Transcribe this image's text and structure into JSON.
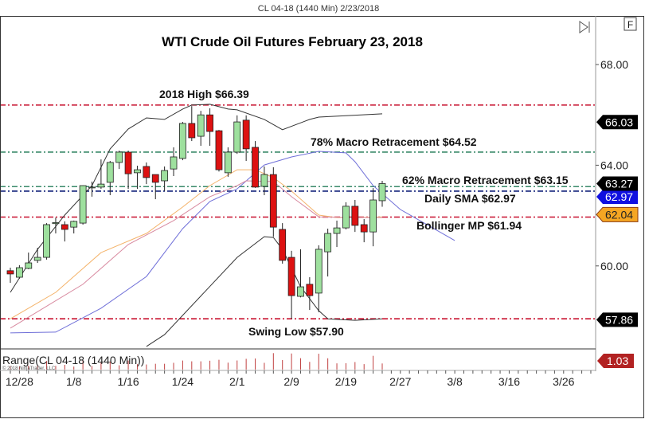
{
  "window": {
    "header": "CL 04-18 (1440 Min)  2/23/2018",
    "f_button": "F",
    "scroll_end_icon": "scroll-to-end-icon"
  },
  "chart_data": {
    "type": "candlestick",
    "title": "WTI Crude Oil Futures February 23, 2018",
    "ylim": [
      56.9,
      69.8
    ],
    "y_ticks": [
      "68.00",
      "64.00",
      "60.00"
    ],
    "y_tick_values": [
      68,
      64,
      60
    ],
    "x_ticks": [
      "12/28",
      "1/8",
      "1/16",
      "1/24",
      "2/1",
      "2/9",
      "2/19",
      "2/27",
      "3/8",
      "3/16",
      "3/26"
    ],
    "grid": false,
    "colors": {
      "up": "#9ee09e",
      "down": "#dd1111",
      "upper_band": "#333333",
      "lower_band": "#333333",
      "sma_blue": "#6f6fd8",
      "orange": "#f4b36a",
      "pink": "#d88aa0"
    },
    "candles": [
      {
        "date": "12/27",
        "o": 59.81,
        "h": 59.93,
        "l": 59.33,
        "c": 59.68
      },
      {
        "date": "12/28",
        "o": 59.55,
        "h": 60.03,
        "l": 59.49,
        "c": 59.93
      },
      {
        "date": "12/29",
        "o": 59.9,
        "h": 60.53,
        "l": 59.87,
        "c": 60.12
      },
      {
        "date": "1/2",
        "o": 60.22,
        "h": 60.72,
        "l": 60.12,
        "c": 60.34
      },
      {
        "date": "1/3",
        "o": 60.34,
        "h": 61.7,
        "l": 60.25,
        "c": 61.64
      },
      {
        "date": "1/4",
        "o": 61.68,
        "h": 61.92,
        "l": 61.29,
        "c": 61.72
      },
      {
        "date": "1/5",
        "o": 61.64,
        "h": 61.77,
        "l": 60.97,
        "c": 61.45
      },
      {
        "date": "1/8",
        "o": 61.54,
        "h": 61.8,
        "l": 61.29,
        "c": 61.77
      },
      {
        "date": "1/9",
        "o": 61.7,
        "h": 63.2,
        "l": 61.64,
        "c": 63.19
      },
      {
        "date": "1/10",
        "o": 63.11,
        "h": 63.35,
        "l": 62.75,
        "c": 63.13
      },
      {
        "date": "1/11",
        "o": 63.13,
        "h": 64.23,
        "l": 63.06,
        "c": 63.25
      },
      {
        "date": "1/12",
        "o": 63.32,
        "h": 64.17,
        "l": 62.81,
        "c": 64.11
      },
      {
        "date": "1/15",
        "o": 64.11,
        "h": 64.58,
        "l": 63.85,
        "c": 64.52
      },
      {
        "date": "1/16",
        "o": 64.52,
        "h": 64.58,
        "l": 63.06,
        "c": 63.66
      },
      {
        "date": "1/17",
        "o": 63.7,
        "h": 63.98,
        "l": 63.06,
        "c": 63.82
      },
      {
        "date": "1/18",
        "o": 63.95,
        "h": 64.11,
        "l": 63.25,
        "c": 63.51
      },
      {
        "date": "1/19",
        "o": 63.63,
        "h": 63.63,
        "l": 62.65,
        "c": 63.32
      },
      {
        "date": "1/22",
        "o": 63.38,
        "h": 63.95,
        "l": 62.97,
        "c": 63.79
      },
      {
        "date": "1/23",
        "o": 63.85,
        "h": 64.71,
        "l": 63.57,
        "c": 64.33
      },
      {
        "date": "1/24",
        "o": 64.27,
        "h": 65.72,
        "l": 64.2,
        "c": 65.66
      },
      {
        "date": "1/25",
        "o": 65.66,
        "h": 66.35,
        "l": 64.96,
        "c": 65.09
      },
      {
        "date": "1/26",
        "o": 65.15,
        "h": 66.16,
        "l": 64.77,
        "c": 66.0
      },
      {
        "date": "1/29",
        "o": 66.0,
        "h": 66.26,
        "l": 64.77,
        "c": 65.34
      },
      {
        "date": "1/30",
        "o": 65.37,
        "h": 65.4,
        "l": 63.75,
        "c": 63.82
      },
      {
        "date": "1/31",
        "o": 63.7,
        "h": 64.71,
        "l": 63.54,
        "c": 64.52
      },
      {
        "date": "2/1",
        "o": 64.52,
        "h": 65.98,
        "l": 64.45,
        "c": 65.72
      },
      {
        "date": "2/2",
        "o": 65.79,
        "h": 65.98,
        "l": 64.17,
        "c": 64.65
      },
      {
        "date": "2/5",
        "o": 64.71,
        "h": 64.96,
        "l": 63.1,
        "c": 63.13
      },
      {
        "date": "2/6",
        "o": 63.16,
        "h": 63.95,
        "l": 62.81,
        "c": 63.63
      },
      {
        "date": "2/7",
        "o": 63.63,
        "h": 63.92,
        "l": 61.16,
        "c": 61.54
      },
      {
        "date": "2/8",
        "o": 61.45,
        "h": 61.7,
        "l": 60.09,
        "c": 60.22
      },
      {
        "date": "2/9",
        "o": 60.34,
        "h": 60.6,
        "l": 57.9,
        "c": 58.82
      },
      {
        "date": "2/12",
        "o": 58.79,
        "h": 60.66,
        "l": 58.75,
        "c": 59.17
      },
      {
        "date": "2/13",
        "o": 59.27,
        "h": 59.55,
        "l": 58.25,
        "c": 58.82
      },
      {
        "date": "2/14",
        "o": 58.92,
        "h": 60.82,
        "l": 58.16,
        "c": 60.66
      },
      {
        "date": "2/15",
        "o": 60.56,
        "h": 61.48,
        "l": 59.58,
        "c": 61.29
      },
      {
        "date": "2/16",
        "o": 61.29,
        "h": 61.8,
        "l": 60.75,
        "c": 61.51
      },
      {
        "date": "2/19",
        "o": 61.51,
        "h": 62.53,
        "l": 61.45,
        "c": 62.37
      },
      {
        "date": "2/20",
        "o": 62.37,
        "h": 62.62,
        "l": 61.35,
        "c": 61.61
      },
      {
        "date": "2/21",
        "o": 61.64,
        "h": 61.86,
        "l": 60.94,
        "c": 61.35
      },
      {
        "date": "2/22",
        "o": 61.35,
        "h": 63.09,
        "l": 60.78,
        "c": 62.62
      },
      {
        "date": "2/23",
        "o": 62.59,
        "h": 63.38,
        "l": 62.35,
        "c": 63.27
      }
    ],
    "indicator_lines": [
      {
        "key": "upper_band",
        "points": [
          [
            "12/27",
            58.95
          ],
          [
            "1/2",
            60.66
          ],
          [
            "1/5",
            62.02
          ],
          [
            "1/10",
            63.19
          ],
          [
            "1/12",
            64.65
          ],
          [
            "1/16",
            65.44
          ],
          [
            "1/18",
            65.88
          ],
          [
            "1/22",
            65.82
          ],
          [
            "1/24",
            66.23
          ],
          [
            "1/25",
            66.39
          ],
          [
            "1/29",
            66.42
          ],
          [
            "1/31",
            66.23
          ],
          [
            "2/1",
            66.2
          ],
          [
            "2/6",
            65.82
          ],
          [
            "2/8",
            65.41
          ],
          [
            "2/13",
            65.82
          ],
          [
            "2/14",
            65.91
          ],
          [
            "2/23",
            66.04
          ]
        ]
      },
      {
        "key": "lower_band",
        "points": [
          [
            "1/18",
            56.8
          ],
          [
            "1/22",
            57.27
          ],
          [
            "2/1",
            60.34
          ],
          [
            "2/6",
            61.16
          ],
          [
            "2/7",
            61.13
          ],
          [
            "2/8",
            60.66
          ],
          [
            "2/12",
            59.17
          ],
          [
            "2/14",
            58.22
          ],
          [
            "2/15",
            57.9
          ],
          [
            "2/20",
            57.84
          ],
          [
            "2/23",
            57.9
          ]
        ]
      },
      {
        "key": "sma_blue",
        "points": [
          [
            "12/27",
            57.34
          ],
          [
            "1/4",
            57.37
          ],
          [
            "1/11",
            58.32
          ],
          [
            "1/18",
            59.58
          ],
          [
            "1/24",
            61.48
          ],
          [
            "1/29",
            62.56
          ],
          [
            "2/1",
            63.06
          ],
          [
            "2/6",
            64.01
          ],
          [
            "2/9",
            64.33
          ],
          [
            "2/14",
            64.55
          ],
          [
            "2/19",
            64.49
          ],
          [
            "2/20",
            64.14
          ],
          [
            "2/22",
            63.19
          ],
          [
            "2/27",
            62.24
          ],
          [
            "3/7",
            61.01
          ]
        ]
      },
      {
        "key": "orange",
        "points": [
          [
            "12/27",
            57.9
          ],
          [
            "1/4",
            58.95
          ],
          [
            "1/11",
            60.53
          ],
          [
            "1/18",
            61.29
          ],
          [
            "1/24",
            62.34
          ],
          [
            "1/29",
            63.19
          ],
          [
            "2/1",
            63.82
          ],
          [
            "2/2",
            63.82
          ],
          [
            "2/5",
            63.82
          ],
          [
            "2/7",
            63.51
          ],
          [
            "2/9",
            62.97
          ],
          [
            "2/14",
            62.02
          ],
          [
            "2/16",
            61.92
          ],
          [
            "2/20",
            61.92
          ],
          [
            "2/23",
            61.95
          ]
        ]
      },
      {
        "key": "pink",
        "points": [
          [
            "12/27",
            57.53
          ],
          [
            "1/9",
            59.27
          ],
          [
            "1/16",
            60.85
          ],
          [
            "1/23",
            61.8
          ],
          [
            "1/29",
            62.75
          ],
          [
            "2/1",
            63.19
          ],
          [
            "2/2",
            63.38
          ],
          [
            "2/7",
            63.35
          ],
          [
            "2/9",
            62.75
          ],
          [
            "2/14",
            61.95
          ],
          [
            "2/20",
            61.92
          ],
          [
            "2/23",
            61.92
          ]
        ]
      }
    ],
    "levels": [
      {
        "value": 66.39,
        "color": "#c8102e",
        "label": "2018 High $66.39"
      },
      {
        "value": 64.52,
        "color": "#3a8a6a",
        "label": "78% Macro Retracement $64.52"
      },
      {
        "value": 63.15,
        "color": "#3a8a6a",
        "label": "62% Macro Retracement $63.15"
      },
      {
        "value": 62.97,
        "color": "#10207a",
        "label": "Daily SMA $62.97"
      },
      {
        "value": 61.94,
        "color": "#c8102e",
        "label": "Bollinger MP $61.94"
      },
      {
        "value": 57.9,
        "color": "#c8102e",
        "label": "Swing Low $57.90"
      }
    ],
    "price_markers": [
      {
        "value": 66.03,
        "text": "66.03",
        "bg": "#000000",
        "fg": "#ffffff"
      },
      {
        "value": 62.97,
        "text": "62.97",
        "bg": "#1010e0",
        "fg": "#ffffff"
      },
      {
        "value": 63.27,
        "text": "63.27",
        "bg": "#000000",
        "fg": "#ffffff"
      },
      {
        "value": 62.04,
        "text": "62.04",
        "bg": "#f5a623",
        "fg": "#222222"
      },
      {
        "value": 57.86,
        "text": "57.86",
        "bg": "#000000",
        "fg": "#ffffff"
      }
    ],
    "range_panel": {
      "label": "Range(CL 04-18 (1440 Min))",
      "copyright": "© 2018 NinjaTrader, LLC",
      "last_value": "1.03",
      "marker_color": "#b22222",
      "bar_color": "#c04040"
    }
  }
}
